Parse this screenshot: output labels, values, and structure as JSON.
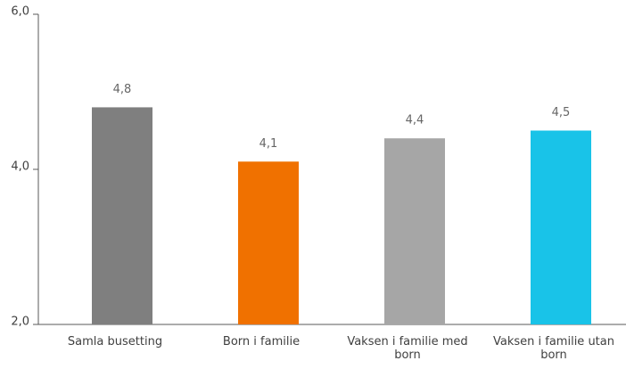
{
  "chart_data": {
    "type": "bar",
    "categories": [
      "Samla busetting",
      "Born i familie",
      "Vaksen i familie med born",
      "Vaksen i familie utan born"
    ],
    "values": [
      4.8,
      4.1,
      4.4,
      4.5
    ],
    "value_labels": [
      "4,8",
      "4,1",
      "4,4",
      "4,5"
    ],
    "colors": [
      "#7f7f7f",
      "#f07100",
      "#a6a6a6",
      "#19c3e8"
    ],
    "ylim": [
      2,
      6
    ],
    "yticks": [
      {
        "value": 2,
        "label": "2,0"
      },
      {
        "value": 4,
        "label": "4,0"
      },
      {
        "value": 6,
        "label": "6,0"
      }
    ]
  }
}
